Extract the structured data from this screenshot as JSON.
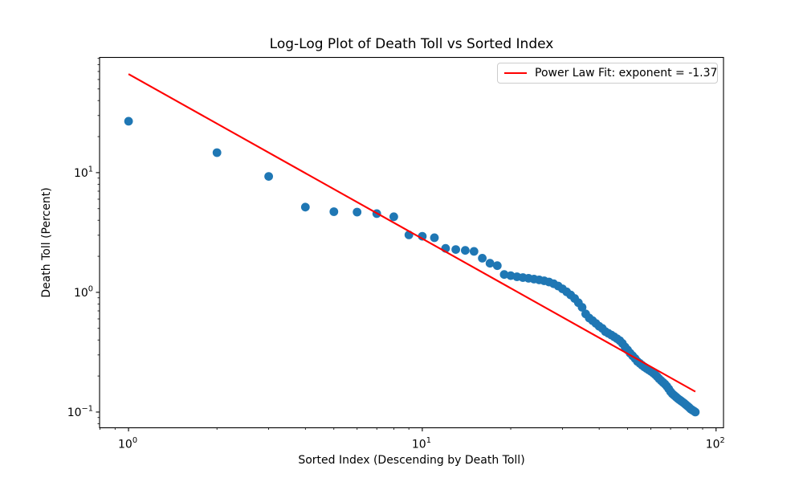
{
  "chart_data": {
    "type": "scatter",
    "title": "Log-Log Plot of Death Toll vs Sorted Index",
    "xlabel": "Sorted Index (Descending by Death Toll)",
    "ylabel": "Death Toll (Percent)",
    "x_scale": "log",
    "y_scale": "log",
    "xlim": [
      0.797,
      106
    ],
    "ylim": [
      0.0739,
      91.7
    ],
    "grid": false,
    "marker_color": "#1f77b4",
    "axis_color": "#000000",
    "legend": {
      "label": "Power Law Fit: exponent = -1.37",
      "position": "upper right",
      "line_color": "#ff0000"
    },
    "x_major_ticks": [
      {
        "value": 1,
        "base": "10",
        "exponent": "0"
      },
      {
        "value": 10,
        "base": "10",
        "exponent": "1"
      },
      {
        "value": 100,
        "base": "10",
        "exponent": "2"
      }
    ],
    "y_major_ticks": [
      {
        "value": 10,
        "base": "10",
        "exponent": "1"
      },
      {
        "value": 1,
        "base": "10",
        "exponent": "0"
      },
      {
        "value": 0.1,
        "base": "10",
        "exponent": "−1"
      }
    ],
    "x_minor_ticks": [
      0.8,
      0.9,
      2,
      3,
      4,
      5,
      6,
      7,
      8,
      9,
      20,
      30,
      40,
      50,
      60,
      70,
      80,
      90
    ],
    "y_minor_ticks": [
      0.08,
      0.09,
      0.2,
      0.3,
      0.4,
      0.5,
      0.6,
      0.7,
      0.8,
      0.9,
      2,
      3,
      4,
      5,
      6,
      7,
      8,
      9,
      20,
      30,
      40,
      50,
      60,
      70,
      80,
      90
    ],
    "series": [
      {
        "name": "death-toll-points",
        "type": "scatter",
        "x": [
          1,
          2,
          3,
          4,
          5,
          6,
          7,
          8,
          9,
          10,
          11,
          12,
          13,
          14,
          15,
          16,
          17,
          18,
          19,
          20,
          21,
          22,
          23,
          24,
          25,
          26,
          27,
          28,
          29,
          30,
          31,
          32,
          33,
          34,
          35,
          36,
          37,
          38,
          39,
          40,
          41,
          42,
          43,
          44,
          45,
          46,
          47,
          48,
          49,
          50,
          51,
          52,
          53,
          54,
          55,
          56,
          57,
          58,
          59,
          60,
          61,
          62,
          63,
          64,
          65,
          66,
          67,
          68,
          69,
          70,
          71,
          72,
          73,
          74,
          75,
          76,
          77,
          78,
          79,
          80,
          81,
          82,
          83,
          84,
          85
        ],
        "y": [
          26.9,
          14.7,
          9.3,
          5.15,
          4.72,
          4.68,
          4.55,
          4.28,
          3.02,
          2.94,
          2.86,
          2.33,
          2.28,
          2.24,
          2.2,
          1.93,
          1.75,
          1.67,
          1.41,
          1.38,
          1.35,
          1.33,
          1.31,
          1.29,
          1.27,
          1.25,
          1.22,
          1.18,
          1.13,
          1.07,
          1.01,
          0.95,
          0.89,
          0.82,
          0.75,
          0.66,
          0.61,
          0.58,
          0.55,
          0.52,
          0.5,
          0.47,
          0.455,
          0.44,
          0.425,
          0.41,
          0.395,
          0.375,
          0.35,
          0.33,
          0.31,
          0.295,
          0.28,
          0.265,
          0.255,
          0.246,
          0.238,
          0.231,
          0.225,
          0.219,
          0.213,
          0.206,
          0.198,
          0.19,
          0.183,
          0.177,
          0.171,
          0.164,
          0.156,
          0.148,
          0.142,
          0.138,
          0.134,
          0.13,
          0.127,
          0.124,
          0.121,
          0.118,
          0.115,
          0.112,
          0.109,
          0.106,
          0.104,
          0.102,
          0.1
        ]
      },
      {
        "name": "power-law-fit",
        "type": "line",
        "color": "#ff0000",
        "power_law": {
          "coefficient": 66.6,
          "exponent": -1.375
        },
        "x_start": 1,
        "x_end": 85
      }
    ]
  }
}
